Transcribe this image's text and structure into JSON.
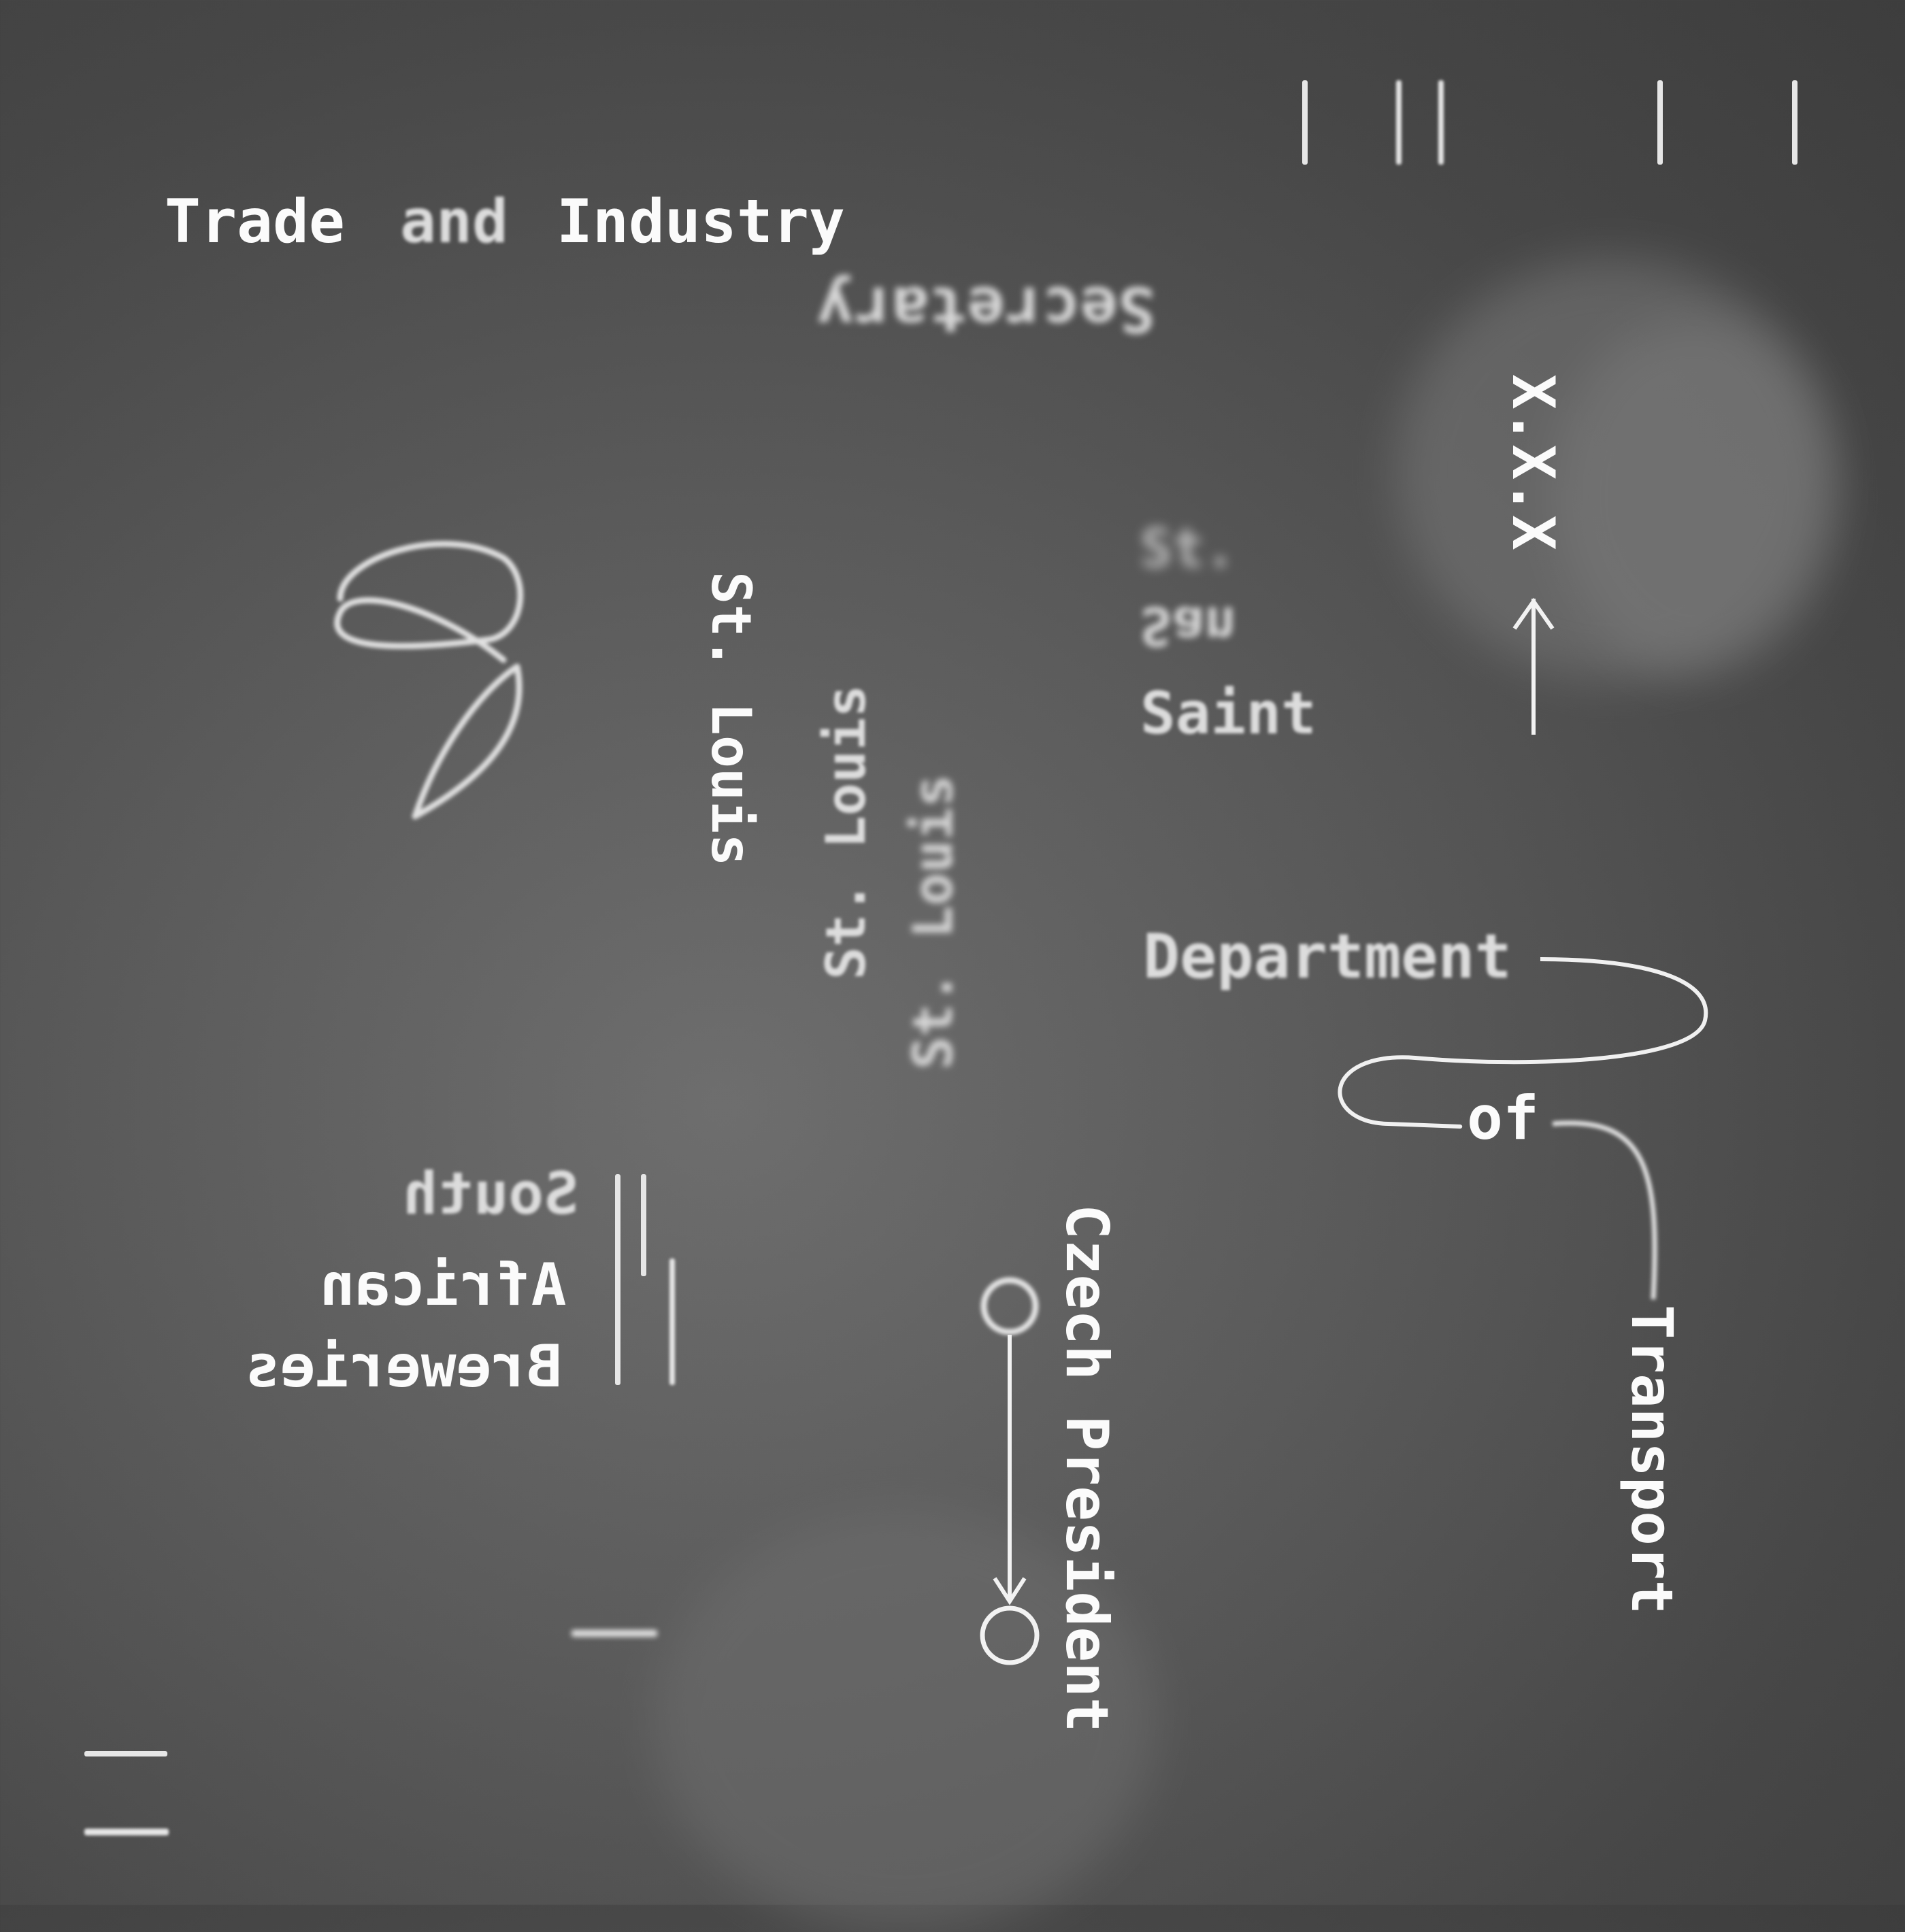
{
  "labels": {
    "trade": "Trade",
    "and": "and",
    "industry": "Industry",
    "secretary": "Secretary",
    "st_louis_a": "St. Louis",
    "st_louis_b": "St. Louis",
    "st_louis_c": "St. Louis",
    "st": "St.",
    "san": "San",
    "saint": "Saint",
    "xxx": "X.X.X",
    "department": "Department",
    "of": "of",
    "transport": "Transport",
    "south": "South",
    "african": "African",
    "breweries": "Breweries",
    "czech_president": "Czech President"
  },
  "colors": {
    "text": "#f6f6f6",
    "background": "#555555"
  }
}
